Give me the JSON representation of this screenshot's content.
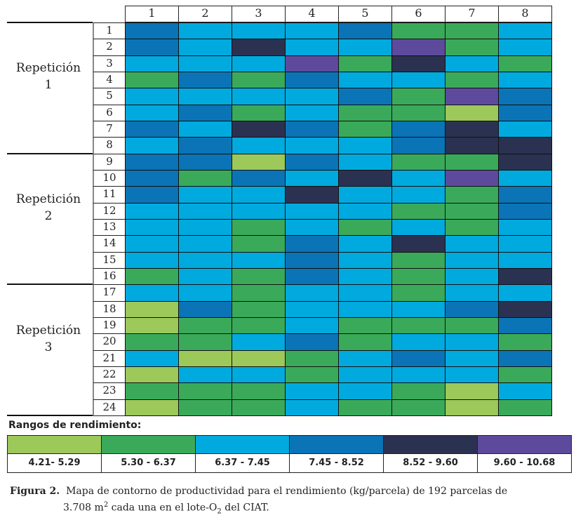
{
  "chart_data": {
    "type": "heatmap",
    "title": "Mapa de contorno de productividad para el rendimiento (kg/parcela)",
    "columns": [
      "1",
      "2",
      "3",
      "4",
      "5",
      "6",
      "7",
      "8"
    ],
    "rows": [
      "1",
      "2",
      "3",
      "4",
      "5",
      "6",
      "7",
      "8",
      "9",
      "10",
      "11",
      "12",
      "13",
      "14",
      "15",
      "16",
      "17",
      "18",
      "19",
      "20",
      "21",
      "22",
      "23",
      "24"
    ],
    "groups": [
      {
        "label_line1": "Repetición",
        "label_line2": "1",
        "rows": [
          1,
          8
        ]
      },
      {
        "label_line1": "Repetición",
        "label_line2": "2",
        "rows": [
          9,
          16
        ]
      },
      {
        "label_line1": "Repetición",
        "label_line2": "3",
        "rows": [
          17,
          24
        ]
      }
    ],
    "legend_title": "Rangos de rendimiento:",
    "ranges": [
      {
        "label": "4.21- 5.29",
        "color": "#9dc85a"
      },
      {
        "label": "5.30 - 6.37",
        "color": "#3aaa5a"
      },
      {
        "label": "6.37 - 7.45",
        "color": "#00aade"
      },
      {
        "label": "7.45 - 8.52",
        "color": "#0a74b6"
      },
      {
        "label": "8.52 - 9.60",
        "color": "#2b3150"
      },
      {
        "label": "9.60 - 10.68",
        "color": "#5d4a9c"
      }
    ],
    "values_range_index": [
      [
        3,
        2,
        2,
        2,
        3,
        1,
        1,
        2
      ],
      [
        3,
        2,
        4,
        2,
        2,
        5,
        1,
        2
      ],
      [
        2,
        2,
        2,
        5,
        1,
        4,
        2,
        1
      ],
      [
        1,
        3,
        1,
        3,
        2,
        2,
        1,
        2
      ],
      [
        2,
        2,
        2,
        2,
        3,
        1,
        5,
        3
      ],
      [
        2,
        3,
        1,
        2,
        1,
        1,
        0,
        3
      ],
      [
        3,
        2,
        4,
        3,
        1,
        3,
        4,
        2
      ],
      [
        2,
        3,
        2,
        2,
        2,
        3,
        4,
        4
      ],
      [
        3,
        3,
        0,
        3,
        2,
        1,
        1,
        4
      ],
      [
        3,
        1,
        3,
        2,
        4,
        2,
        5,
        2
      ],
      [
        3,
        2,
        2,
        4,
        2,
        2,
        1,
        3
      ],
      [
        2,
        2,
        2,
        2,
        2,
        1,
        1,
        3
      ],
      [
        2,
        2,
        1,
        2,
        1,
        2,
        1,
        2
      ],
      [
        2,
        2,
        1,
        3,
        2,
        4,
        2,
        2
      ],
      [
        2,
        2,
        2,
        3,
        2,
        1,
        2,
        2
      ],
      [
        1,
        2,
        1,
        3,
        2,
        1,
        2,
        4
      ],
      [
        2,
        2,
        1,
        2,
        2,
        1,
        2,
        2
      ],
      [
        0,
        3,
        1,
        2,
        2,
        2,
        3,
        4
      ],
      [
        0,
        1,
        1,
        2,
        1,
        1,
        1,
        3
      ],
      [
        1,
        1,
        2,
        3,
        1,
        2,
        2,
        1
      ],
      [
        2,
        0,
        0,
        1,
        2,
        3,
        2,
        3
      ],
      [
        0,
        2,
        2,
        1,
        2,
        2,
        2,
        1
      ],
      [
        1,
        1,
        1,
        2,
        2,
        1,
        0,
        2
      ],
      [
        0,
        1,
        1,
        2,
        1,
        1,
        0,
        1
      ]
    ]
  },
  "caption": {
    "label": "Figura 2.",
    "text1": "Mapa de contorno de productividad para el rendimiento (kg/parcela) de 192 parcelas de",
    "text2a": "3.708 m",
    "sup": "2",
    "text2b": " cada una en el lote-O",
    "sub": "2",
    "text2c": " del CIAT."
  }
}
